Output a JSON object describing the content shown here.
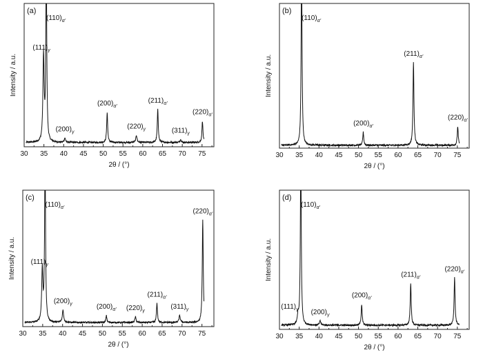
{
  "chart_data": [
    {
      "type": "line",
      "panel_label": "(a)",
      "xlabel": "2θ / (°)",
      "ylabel": "Intensity / a.u.",
      "xlim": [
        30,
        78
      ],
      "xticks": [
        30,
        35,
        40,
        45,
        50,
        55,
        60,
        65,
        70,
        75
      ],
      "ylim": [
        0,
        100
      ],
      "baseline": 3,
      "peaks": [
        {
          "x": 34.9,
          "height": 60,
          "width": 0.18,
          "label": "(111)",
          "sub": "γ"
        },
        {
          "x": 35.6,
          "height": 125,
          "width": 0.14,
          "label": "(110)",
          "sub": "α'"
        },
        {
          "x": 40.3,
          "height": 3,
          "width": 0.2,
          "label": "(200)",
          "sub": "γ"
        },
        {
          "x": 51.0,
          "height": 21,
          "width": 0.15,
          "label": "(200)",
          "sub": "α'"
        },
        {
          "x": 58.4,
          "height": 5,
          "width": 0.18,
          "label": "(220)",
          "sub": "γ"
        },
        {
          "x": 63.8,
          "height": 23,
          "width": 0.15,
          "label": "(211)",
          "sub": "α'"
        },
        {
          "x": 69.6,
          "height": 2,
          "width": 0.2,
          "label": "(311)",
          "sub": "γ"
        },
        {
          "x": 75.1,
          "height": 15,
          "width": 0.15,
          "label": "(220)",
          "sub": "α'"
        }
      ]
    },
    {
      "type": "line",
      "panel_label": "(b)",
      "xlabel": "2θ / (°)",
      "ylabel": "Intensity / a.u.",
      "xlim": [
        30,
        78
      ],
      "xticks": [
        30,
        35,
        40,
        45,
        50,
        55,
        60,
        65,
        70,
        75
      ],
      "ylim": [
        0,
        100
      ],
      "baseline": 2,
      "peaks": [
        {
          "x": 35.6,
          "height": 125,
          "width": 0.14,
          "label": "(110)",
          "sub": "α'"
        },
        {
          "x": 51.2,
          "height": 9,
          "width": 0.15,
          "label": "(200)",
          "sub": "α'"
        },
        {
          "x": 63.9,
          "height": 57,
          "width": 0.15,
          "label": "(211)",
          "sub": "α'"
        },
        {
          "x": 75.1,
          "height": 13,
          "width": 0.15,
          "label": "(220)",
          "sub": "α'"
        }
      ]
    },
    {
      "type": "line",
      "panel_label": "(c)",
      "xlabel": "2θ / (°)",
      "ylabel": "Intensity / a.u.",
      "xlim": [
        30,
        78
      ],
      "xticks": [
        30,
        35,
        40,
        45,
        50,
        55,
        60,
        65,
        70,
        75
      ],
      "ylim": [
        0,
        100
      ],
      "baseline": 3,
      "peaks": [
        {
          "x": 34.9,
          "height": 38,
          "width": 0.18,
          "label": "(111)",
          "sub": "γ"
        },
        {
          "x": 35.6,
          "height": 125,
          "width": 0.14,
          "label": "(110)",
          "sub": "α'"
        },
        {
          "x": 40.1,
          "height": 9,
          "width": 0.2,
          "label": "(200)",
          "sub": "γ"
        },
        {
          "x": 51.0,
          "height": 5,
          "width": 0.15,
          "label": "(200)",
          "sub": "α'"
        },
        {
          "x": 58.3,
          "height": 4,
          "width": 0.18,
          "label": "(220)",
          "sub": "γ"
        },
        {
          "x": 63.7,
          "height": 14,
          "width": 0.15,
          "label": "(211)",
          "sub": "α'"
        },
        {
          "x": 69.4,
          "height": 5,
          "width": 0.2,
          "label": "(311)",
          "sub": "γ"
        },
        {
          "x": 75.2,
          "height": 75,
          "width": 0.15,
          "label": "(220)",
          "sub": "α'"
        }
      ]
    },
    {
      "type": "line",
      "panel_label": "(d)",
      "xlabel": "2θ / (°)",
      "ylabel": "Intensity / a.u.",
      "xlim": [
        30,
        78
      ],
      "xticks": [
        30,
        35,
        40,
        45,
        50,
        55,
        60,
        65,
        70,
        75
      ],
      "ylim": [
        0,
        100
      ],
      "baseline": 3,
      "peaks": [
        {
          "x": 34.7,
          "height": 7,
          "width": 0.18,
          "label": "(111)",
          "sub": "γ"
        },
        {
          "x": 35.4,
          "height": 125,
          "width": 0.14,
          "label": "(110)",
          "sub": "α'"
        },
        {
          "x": 40.3,
          "height": 3,
          "width": 0.2,
          "label": "(200)",
          "sub": "γ"
        },
        {
          "x": 50.8,
          "height": 15,
          "width": 0.15,
          "label": "(200)",
          "sub": "α'"
        },
        {
          "x": 63.2,
          "height": 30,
          "width": 0.15,
          "label": "(211)",
          "sub": "α'"
        },
        {
          "x": 74.3,
          "height": 34,
          "width": 0.15,
          "label": "(220)",
          "sub": "α'"
        }
      ]
    }
  ]
}
